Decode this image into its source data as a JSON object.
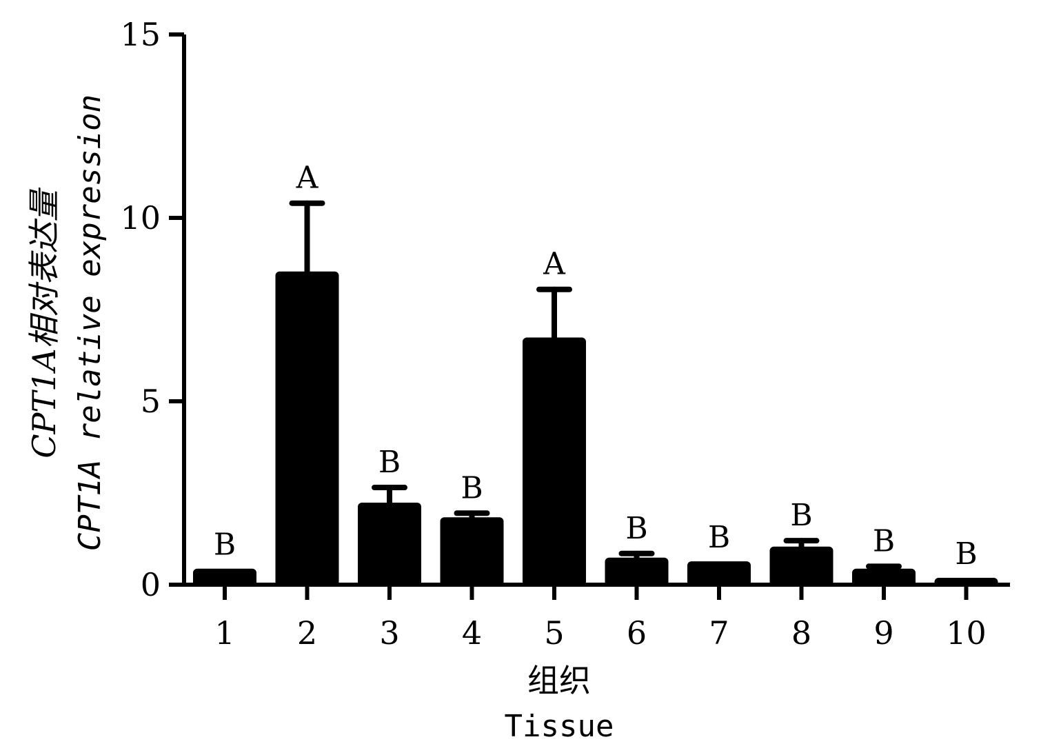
{
  "chart_data": {
    "type": "bar",
    "categories": [
      "1",
      "2",
      "3",
      "4",
      "5",
      "6",
      "7",
      "8",
      "9",
      "10"
    ],
    "values": [
      0.4,
      8.5,
      2.2,
      1.8,
      6.7,
      0.7,
      0.6,
      1.0,
      0.4,
      0.15
    ],
    "error_upper": [
      0.4,
      10.4,
      2.65,
      1.95,
      8.05,
      0.85,
      0.6,
      1.2,
      0.5,
      0.15
    ],
    "significance": [
      "B",
      "A",
      "B",
      "B",
      "A",
      "B",
      "B",
      "B",
      "B",
      "B"
    ],
    "ylim": [
      0,
      15
    ],
    "yticks": [
      0,
      5,
      10,
      15
    ],
    "ylabel_cn": "CPT1A相对表达量",
    "ylabel_en": "CPT1A relative expression",
    "xlabel_cn": "组织",
    "xlabel_en": "Tissue",
    "bar_color": "#000000",
    "grid": false,
    "legend": "none"
  }
}
